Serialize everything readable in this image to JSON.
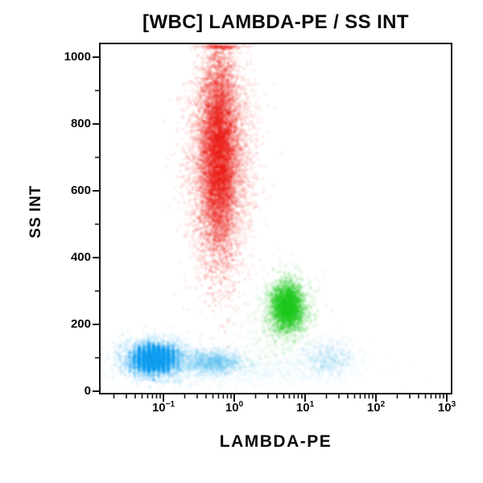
{
  "title": "[WBC] LAMBDA-PE / SS INT",
  "x_axis": {
    "label": "LAMBDA-PE"
  },
  "y_axis": {
    "label": "SS INT"
  },
  "chart_data": {
    "type": "scatter",
    "subtype": "flow-cytometry-density-dot-plot",
    "title": "[WBC] LAMBDA-PE / SS INT",
    "xlabel": "LAMBDA-PE",
    "ylabel": "SS INT",
    "x_scale": "log10",
    "x_tick_exponents": [
      -1,
      0,
      1,
      2,
      3
    ],
    "x_range_log10": [
      -1.89,
      3.06
    ],
    "y_ticks": [
      0,
      200,
      400,
      600,
      800,
      1000
    ],
    "y_minor_tick_step": 100,
    "y_range": [
      0,
      1038
    ],
    "grid": "off",
    "legend": "none",
    "clusters": [
      {
        "name": "red-population-halo",
        "n": 5500,
        "logx": -0.21,
        "ss": 690,
        "sigma_logx": 0.22,
        "sigma_ss": 160,
        "color": "#f41e14",
        "alpha": 0.05,
        "radius": 2.4
      },
      {
        "name": "red-population-core",
        "n": 5200,
        "logx": -0.22,
        "ss": 715,
        "sigma_logx": 0.12,
        "sigma_ss": 150,
        "color": "#ee1205",
        "alpha": 0.09,
        "radius": 2.2
      },
      {
        "name": "blue-population-halo",
        "n": 2400,
        "logx": -1.11,
        "ss": 95,
        "sigma_logx": 0.24,
        "sigma_ss": 30,
        "color": "#2fa9ea",
        "alpha": 0.06,
        "radius": 2.4
      },
      {
        "name": "blue-population-core",
        "n": 2900,
        "logx": -1.13,
        "ss": 97,
        "sigma_logx": 0.13,
        "sigma_ss": 19,
        "color": "#0fa0ee",
        "alpha": 0.12,
        "radius": 2.2,
        "quantize_x": 6
      },
      {
        "name": "blue-population-mid-faint",
        "n": 1300,
        "logx": -0.29,
        "ss": 86,
        "sigma_logx": 0.21,
        "sigma_ss": 18,
        "color": "#3aaeea",
        "alpha": 0.05,
        "radius": 2.2
      },
      {
        "name": "blue-population-right-faint",
        "n": 650,
        "logx": 1.33,
        "ss": 97,
        "sigma_logx": 0.2,
        "sigma_ss": 28,
        "color": "#55b8ea",
        "alpha": 0.04,
        "radius": 2.2
      },
      {
        "name": "blue-bottom-haze",
        "n": 900,
        "logx": 0.2,
        "ss": 62,
        "sigma_logx": 0.85,
        "sigma_ss": 28,
        "color": "#6cc0ec",
        "alpha": 0.022,
        "radius": 2.6
      },
      {
        "name": "green-population-halo",
        "n": 1500,
        "logx": 0.75,
        "ss": 250,
        "sigma_logx": 0.17,
        "sigma_ss": 48,
        "color": "#3cc63c",
        "alpha": 0.06,
        "radius": 2.4
      },
      {
        "name": "green-population-core",
        "n": 1800,
        "logx": 0.75,
        "ss": 252,
        "sigma_logx": 0.1,
        "sigma_ss": 33,
        "color": "#22c822",
        "alpha": 0.13,
        "radius": 2.2
      },
      {
        "name": "green-trail-faint",
        "n": 380,
        "logx": 0.4,
        "ss": 155,
        "sigma_logx": 0.3,
        "sigma_ss": 60,
        "color": "#55c855",
        "alpha": 0.03,
        "radius": 2.2
      }
    ]
  },
  "colors": {
    "frame": "#151515",
    "text": "#0a0a0a",
    "red_population": "#ee1205",
    "blue_population": "#0fa0ee",
    "green_population": "#22c822",
    "background": "#ffffff"
  }
}
